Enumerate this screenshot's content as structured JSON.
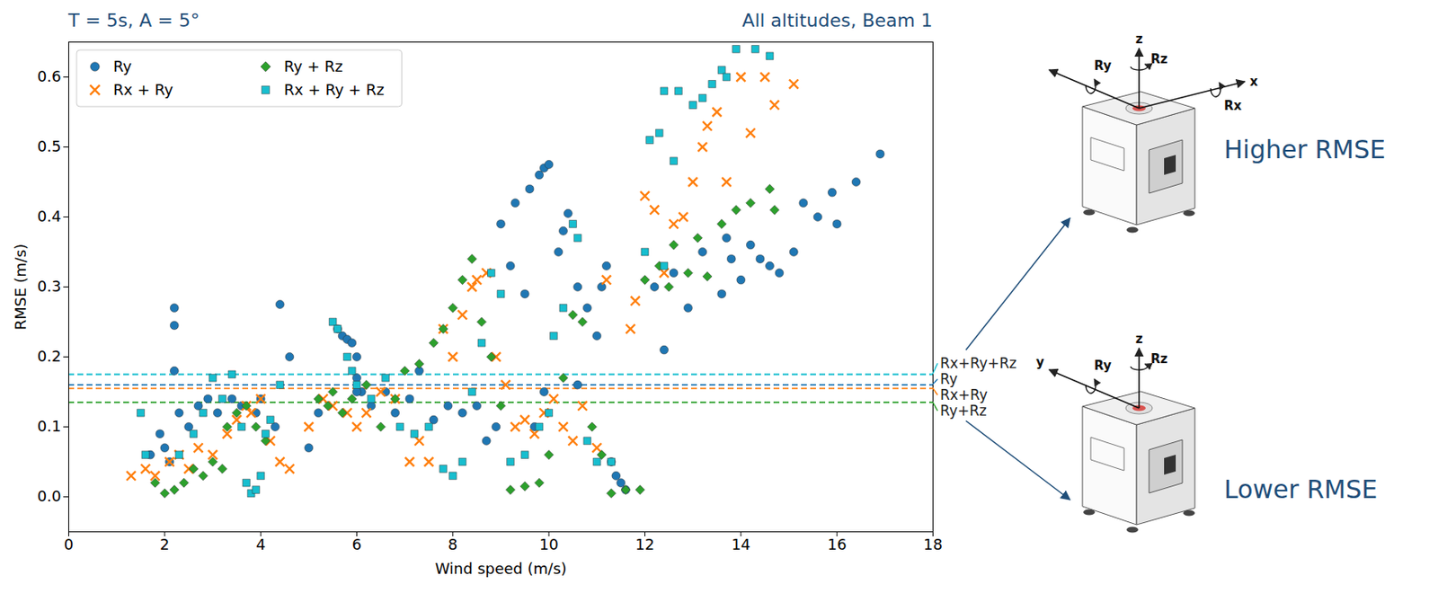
{
  "chart_data": {
    "type": "scatter",
    "title": "T = 5s, A = 5°",
    "subtitle": "All altitudes, Beam 1",
    "x_label": "Wind speed (m/s)",
    "y_label": "RMSE (m/s)",
    "xlim": [
      0,
      18
    ],
    "xticks": [
      0,
      2,
      4,
      6,
      8,
      10,
      12,
      14,
      16,
      18
    ],
    "ylim": [
      -0.05,
      0.65
    ],
    "yticks": [
      {
        "value": 0,
        "label": "0.0"
      },
      0.1,
      0.2,
      0.3,
      0.4,
      0.5,
      0.6
    ],
    "legend": "upper left",
    "grid": false,
    "series": [
      {
        "name": "Ry",
        "color": "#1f77b4",
        "marker": "circle",
        "mean": 0.16,
        "mean_label": "Ry",
        "x": [
          1.7,
          1.9,
          2.0,
          2.1,
          2.2,
          2.2,
          2.2,
          2.3,
          2.5,
          2.7,
          2.9,
          3.1,
          3.4,
          3.6,
          3.9,
          4.0,
          4.4,
          4.6,
          4.3,
          5.0,
          5.2,
          5.6,
          5.7,
          5.8,
          5.9,
          6.0,
          6.0,
          6.1,
          6.3,
          6.6,
          6.8,
          7.1,
          7.3,
          7.6,
          7.9,
          8.2,
          8.5,
          8.7,
          8.9,
          9.0,
          9.2,
          9.3,
          9.5,
          9.6,
          9.8,
          9.9,
          10.0,
          9.7,
          9.9,
          10.2,
          10.3,
          10.4,
          10.6,
          10.8,
          11.0,
          11.1,
          11.2,
          11.3,
          11.4,
          11.5,
          11.6,
          12.2,
          12.4,
          12.6,
          12.9,
          13.2,
          13.6,
          13.8,
          14.0,
          14.2,
          14.4,
          14.6,
          14.8,
          15.1,
          15.3,
          15.6,
          15.9,
          16.0,
          16.4,
          16.9,
          13.7,
          6.0,
          10.6
        ],
        "values": [
          0.06,
          0.09,
          0.07,
          0.05,
          0.27,
          0.245,
          0.18,
          0.12,
          0.1,
          0.13,
          0.14,
          0.12,
          0.14,
          0.13,
          0.12,
          0.14,
          0.275,
          0.2,
          0.1,
          0.07,
          0.12,
          0.24,
          0.23,
          0.225,
          0.22,
          0.2,
          0.17,
          0.15,
          0.13,
          0.15,
          0.12,
          0.14,
          0.18,
          0.11,
          0.13,
          0.12,
          0.13,
          0.08,
          0.1,
          0.39,
          0.33,
          0.42,
          0.29,
          0.44,
          0.46,
          0.47,
          0.475,
          0.1,
          0.15,
          0.35,
          0.38,
          0.405,
          0.3,
          0.27,
          0.23,
          0.3,
          0.33,
          0.05,
          0.03,
          0.02,
          0.01,
          0.3,
          0.21,
          0.32,
          0.27,
          0.35,
          0.29,
          0.34,
          0.31,
          0.36,
          0.34,
          0.33,
          0.32,
          0.35,
          0.42,
          0.4,
          0.435,
          0.39,
          0.45,
          0.49,
          0.37,
          0.15,
          0.16
        ]
      },
      {
        "name": "Rx + Ry",
        "color": "#ff7f0e",
        "marker": "x",
        "mean": 0.155,
        "mean_label": "Rx+Ry",
        "x": [
          1.3,
          1.6,
          1.8,
          2.1,
          2.3,
          2.5,
          2.7,
          3.0,
          3.3,
          3.5,
          3.7,
          3.8,
          4.0,
          4.2,
          4.4,
          4.6,
          5.0,
          5.3,
          5.5,
          5.8,
          6.0,
          6.2,
          6.5,
          6.8,
          7.1,
          7.3,
          7.5,
          7.8,
          8.0,
          8.2,
          8.4,
          8.5,
          8.7,
          8.9,
          9.1,
          9.3,
          9.5,
          9.7,
          9.9,
          10.1,
          10.3,
          10.5,
          10.7,
          11.0,
          11.2,
          11.7,
          12.0,
          12.2,
          12.4,
          12.6,
          12.8,
          13.0,
          13.2,
          13.3,
          13.5,
          13.7,
          14.0,
          14.2,
          14.5,
          14.7,
          15.1,
          11.8
        ],
        "values": [
          0.03,
          0.04,
          0.03,
          0.05,
          0.06,
          0.04,
          0.07,
          0.06,
          0.09,
          0.11,
          0.13,
          0.12,
          0.14,
          0.08,
          0.05,
          0.04,
          0.1,
          0.14,
          0.13,
          0.12,
          0.1,
          0.12,
          0.15,
          0.14,
          0.05,
          0.08,
          0.05,
          0.24,
          0.2,
          0.26,
          0.3,
          0.31,
          0.32,
          0.2,
          0.16,
          0.1,
          0.11,
          0.09,
          0.12,
          0.14,
          0.1,
          0.08,
          0.13,
          0.07,
          0.31,
          0.24,
          0.43,
          0.41,
          0.32,
          0.39,
          0.4,
          0.45,
          0.5,
          0.53,
          0.55,
          0.45,
          0.6,
          0.52,
          0.6,
          0.56,
          0.59,
          0.28
        ]
      },
      {
        "name": "Ry + Rz",
        "color": "#2ca02c",
        "marker": "diamond",
        "mean": 0.135,
        "mean_label": "Ry+Rz",
        "x": [
          1.8,
          2.0,
          2.2,
          2.4,
          2.6,
          2.8,
          3.0,
          3.2,
          3.3,
          3.5,
          3.7,
          3.9,
          4.1,
          5.2,
          5.4,
          5.5,
          5.7,
          5.9,
          6.2,
          6.5,
          6.8,
          7.0,
          7.3,
          7.6,
          7.8,
          8.0,
          8.2,
          8.4,
          8.6,
          8.8,
          9.0,
          9.2,
          9.5,
          9.8,
          10.0,
          10.3,
          10.5,
          10.7,
          10.9,
          11.1,
          11.3,
          11.6,
          11.9,
          12.0,
          12.3,
          12.6,
          12.9,
          13.1,
          13.3,
          13.6,
          13.9,
          14.2,
          14.6,
          14.7,
          12.5
        ],
        "values": [
          0.02,
          0.005,
          0.01,
          0.02,
          0.04,
          0.03,
          0.05,
          0.04,
          0.1,
          0.12,
          0.13,
          0.1,
          0.08,
          0.14,
          0.13,
          0.15,
          0.12,
          0.14,
          0.16,
          0.1,
          0.14,
          0.18,
          0.19,
          0.22,
          0.24,
          0.27,
          0.31,
          0.34,
          0.25,
          0.2,
          0.13,
          0.01,
          0.015,
          0.02,
          0.06,
          0.17,
          0.26,
          0.25,
          0.1,
          0.06,
          0.005,
          0.01,
          0.01,
          0.31,
          0.33,
          0.36,
          0.32,
          0.37,
          0.315,
          0.39,
          0.41,
          0.42,
          0.44,
          0.41,
          0.3
        ]
      },
      {
        "name": "Rx + Ry + Rz",
        "color": "#17becf",
        "marker": "square",
        "mean": 0.175,
        "mean_label": "Rx+Ry+Rz",
        "x": [
          1.5,
          1.6,
          2.3,
          2.6,
          2.8,
          3.0,
          3.2,
          3.4,
          3.6,
          3.7,
          3.8,
          3.9,
          4.0,
          4.1,
          4.2,
          4.4,
          5.5,
          5.6,
          5.8,
          5.9,
          6.0,
          6.3,
          6.6,
          6.9,
          7.2,
          7.5,
          7.8,
          8.0,
          8.2,
          8.4,
          8.6,
          8.8,
          9.0,
          9.2,
          9.5,
          9.8,
          10.0,
          10.1,
          10.3,
          10.5,
          10.6,
          10.8,
          11.0,
          11.3,
          12.0,
          12.1,
          12.3,
          12.4,
          12.6,
          12.7,
          13.0,
          13.2,
          13.4,
          13.6,
          13.7,
          13.9,
          14.3,
          14.6,
          12.4
        ],
        "values": [
          0.12,
          0.06,
          0.06,
          0.09,
          0.12,
          0.17,
          0.14,
          0.175,
          0.1,
          0.02,
          0.005,
          0.01,
          0.03,
          0.09,
          0.11,
          0.16,
          0.25,
          0.24,
          0.2,
          0.18,
          0.16,
          0.14,
          0.17,
          0.1,
          0.09,
          0.1,
          0.04,
          0.03,
          0.05,
          0.15,
          0.22,
          0.32,
          0.29,
          0.05,
          0.06,
          0.1,
          0.12,
          0.23,
          0.27,
          0.39,
          0.37,
          0.08,
          0.05,
          0.05,
          0.35,
          0.51,
          0.52,
          0.58,
          0.48,
          0.58,
          0.56,
          0.57,
          0.59,
          0.61,
          0.6,
          0.64,
          0.64,
          0.63,
          0.33
        ]
      }
    ],
    "icons": [
      {
        "caption": "Higher RMSE",
        "axes": {
          "vertical": {
            "label": "z",
            "rotation": "Rz"
          },
          "left": {
            "rotation": "Ry"
          },
          "right": {
            "label": "x",
            "rotation": "Rx"
          }
        }
      },
      {
        "caption": "Lower RMSE",
        "axes": {
          "vertical": {
            "label": "z",
            "rotation": "Rz"
          },
          "left": {
            "label": "y",
            "rotation": "Ry"
          }
        }
      }
    ]
  }
}
